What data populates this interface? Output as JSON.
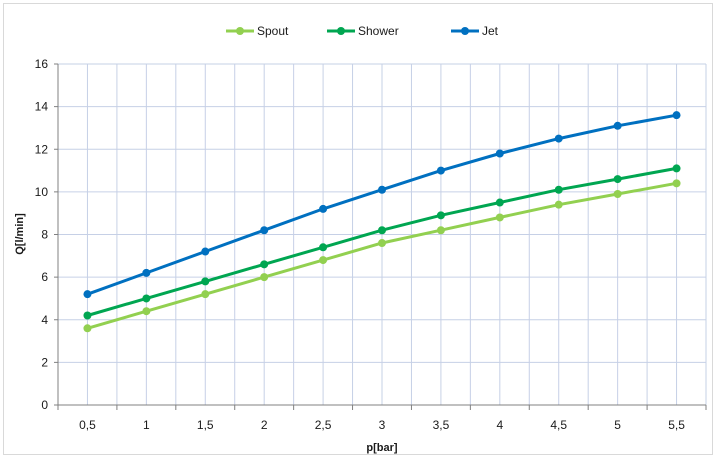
{
  "chart_data": {
    "type": "line",
    "x": [
      "0,5",
      "1",
      "1,5",
      "2",
      "2,5",
      "3",
      "3,5",
      "4",
      "4,5",
      "5",
      "5,5"
    ],
    "x_values": [
      0.5,
      1,
      1.5,
      2,
      2.5,
      3,
      3.5,
      4,
      4.5,
      5,
      5.5
    ],
    "series": [
      {
        "name": "Spout",
        "color": "#92d050",
        "values": [
          3.6,
          4.4,
          5.2,
          6.0,
          6.8,
          7.6,
          8.2,
          8.8,
          9.4,
          9.9,
          10.4
        ]
      },
      {
        "name": "Shower",
        "color": "#00a651",
        "values": [
          4.2,
          5.0,
          5.8,
          6.6,
          7.4,
          8.2,
          8.9,
          9.5,
          10.1,
          10.6,
          11.1
        ]
      },
      {
        "name": "Jet",
        "color": "#0070c0",
        "values": [
          5.2,
          6.2,
          7.2,
          8.2,
          9.2,
          10.1,
          11.0,
          11.8,
          12.5,
          13.1,
          13.6
        ]
      }
    ],
    "xlabel": "p[bar]",
    "ylabel": "Q[l/min]",
    "ylim": [
      0,
      16
    ],
    "yticks": [
      "0",
      "2",
      "4",
      "6",
      "8",
      "10",
      "12",
      "14",
      "16"
    ],
    "grid": true,
    "legend_position": "top"
  }
}
